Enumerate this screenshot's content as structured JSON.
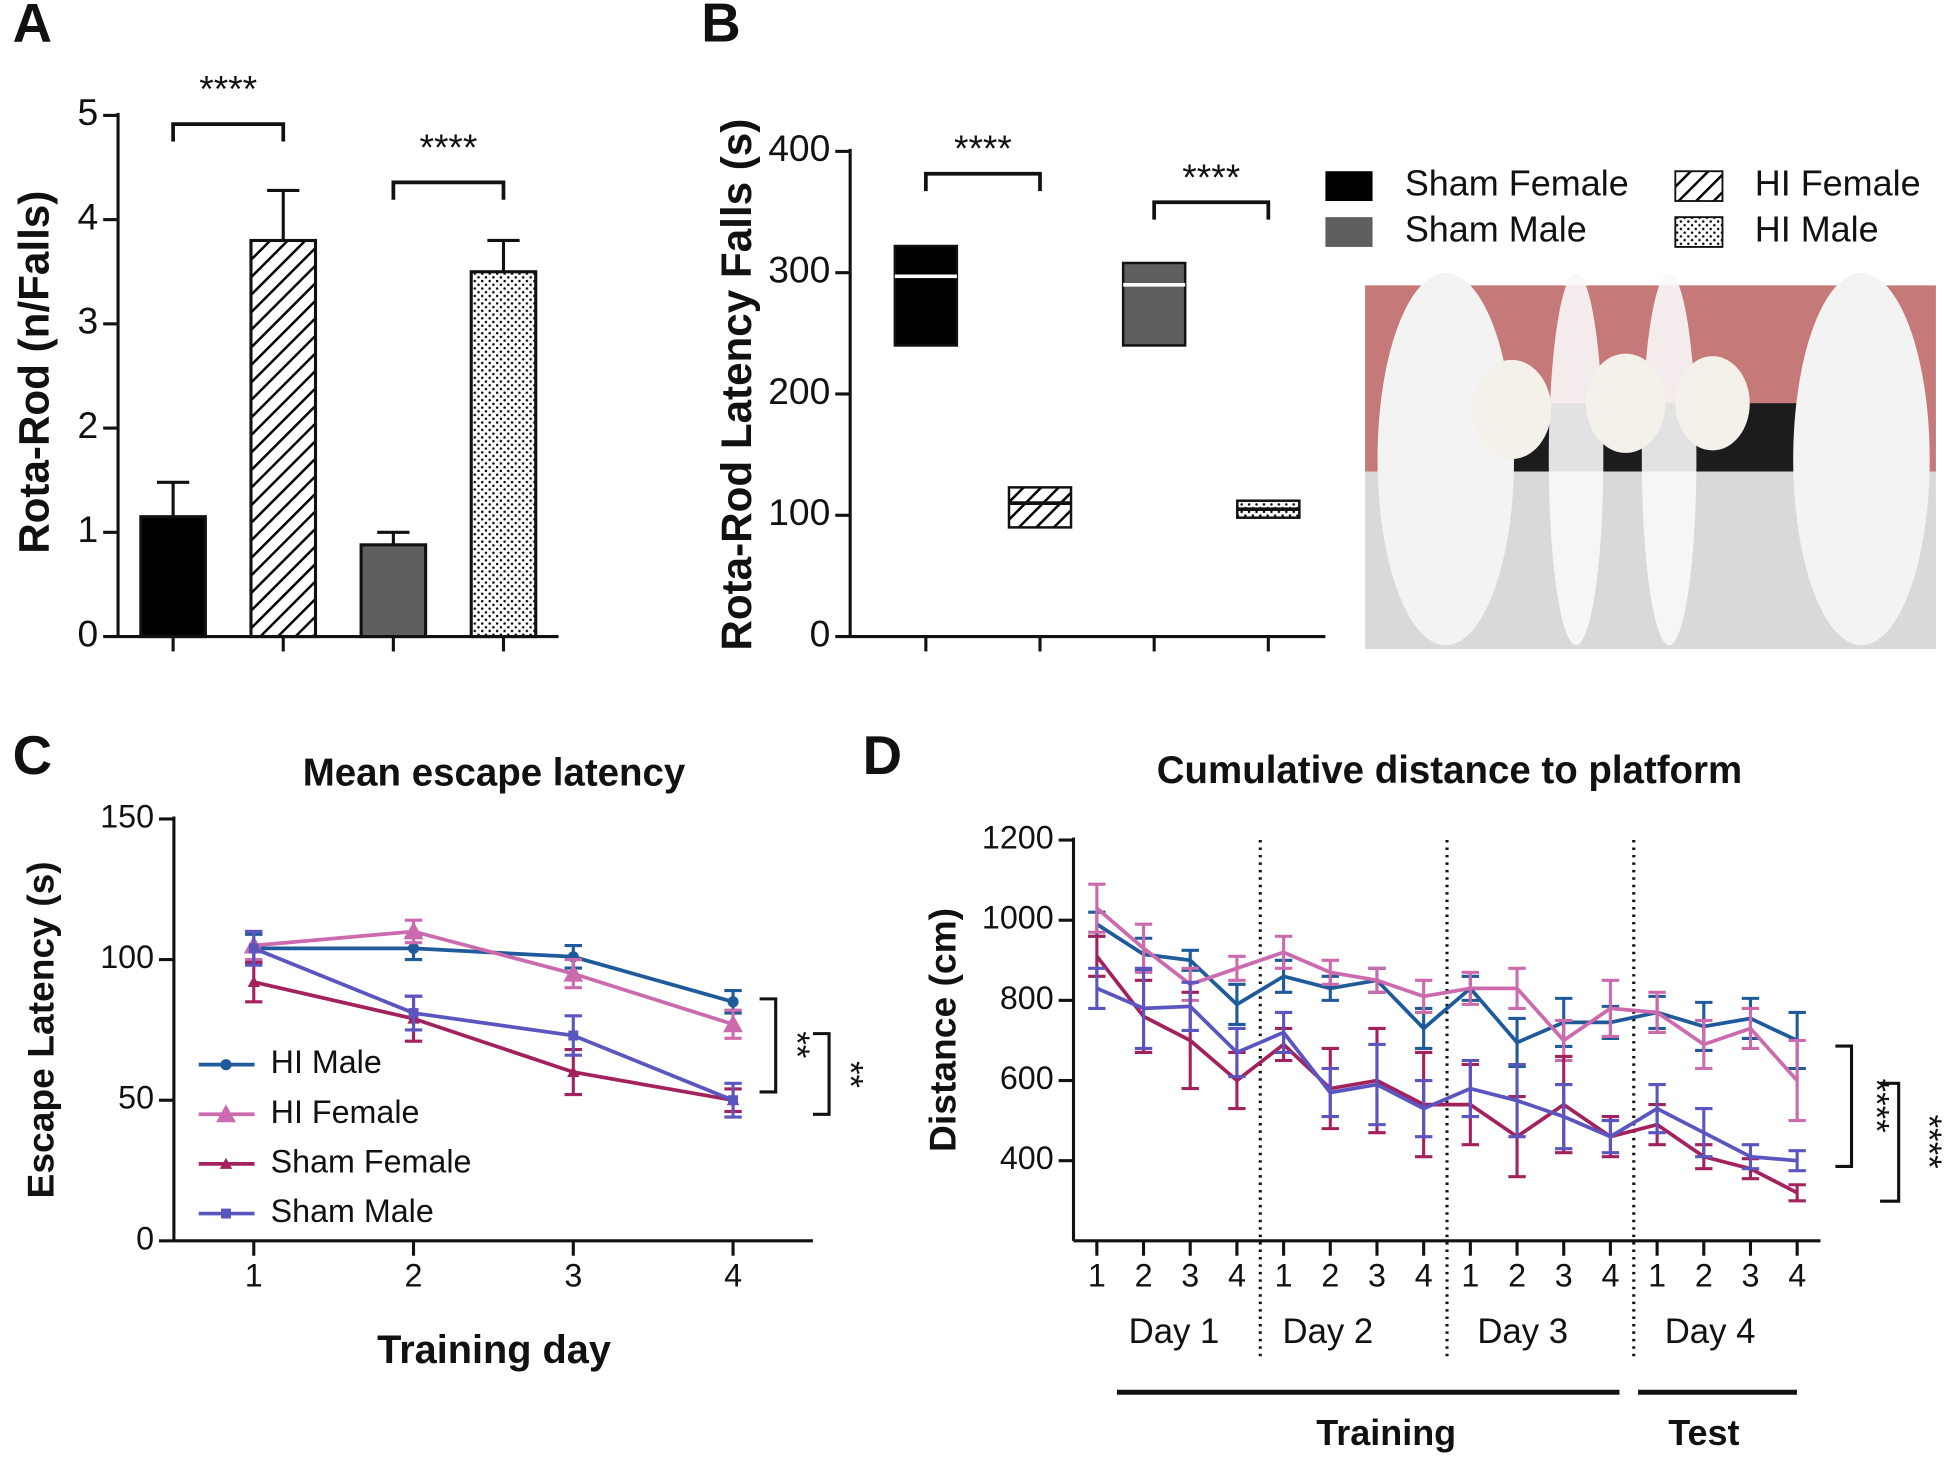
{
  "chart_data": [
    {
      "type": "bar",
      "label": "A",
      "ylabel": "Rota-Rod (n/Falls)",
      "categories": [
        null,
        null,
        null,
        null
      ],
      "series": [
        {
          "values": [
            1.15,
            3.8,
            0.88,
            3.5
          ],
          "errors": [
            0.33,
            0.48,
            0.12,
            0.3
          ],
          "patterns": [
            "solid",
            "hatch",
            "solid",
            "dots"
          ],
          "colors": [
            "#000000",
            "#000000",
            "#5f5f5f",
            "#000000"
          ]
        }
      ],
      "ylim": [
        0,
        5
      ],
      "yticks": [
        0,
        1,
        2,
        3,
        4,
        5
      ],
      "annotations": [
        "****",
        "****"
      ]
    },
    {
      "type": "box",
      "label": "B",
      "ylabel": "Rota-Rod Latency Falls (s)",
      "categories": [
        null,
        null,
        null,
        null
      ],
      "series": [
        {
          "name": "Sham Female",
          "pattern": "solid",
          "color": "#000000",
          "min": 240,
          "median": 297,
          "max": 322
        },
        {
          "name": "HI Female",
          "pattern": "hatch",
          "color": "#000000",
          "min": 90,
          "median": 110,
          "max": 123
        },
        {
          "name": "Sham Male",
          "pattern": "solid",
          "color": "#5f5f5f",
          "min": 240,
          "median": 290,
          "max": 308
        },
        {
          "name": "HI Male",
          "pattern": "dots",
          "color": "#000000",
          "min": 98,
          "median": 105,
          "max": 112
        }
      ],
      "ylim": [
        0,
        400
      ],
      "yticks": [
        0,
        100,
        200,
        300,
        400
      ],
      "annotations": [
        "****",
        "****"
      ]
    },
    {
      "type": "line",
      "label": "C",
      "title": "Mean escape latency",
      "xlabel": "Training day",
      "ylabel": "Escape Latency (s)",
      "x": [
        1,
        2,
        3,
        4
      ],
      "xlim": [
        0.5,
        4.5
      ],
      "xticks": [
        1,
        2,
        3,
        4
      ],
      "series": [
        {
          "name": "HI Male",
          "color": "#1f5a9a",
          "marker": "circle",
          "values": [
            104,
            104,
            101,
            85
          ],
          "errors": [
            5,
            4,
            4,
            4
          ]
        },
        {
          "name": "HI Female",
          "color": "#cc6aae",
          "marker": "triangle",
          "values": [
            105,
            110,
            95,
            77
          ],
          "errors": [
            5,
            4,
            5,
            5
          ]
        },
        {
          "name": "Sham Female",
          "color": "#a3225e",
          "marker": "small-triangle",
          "values": [
            92,
            79,
            60,
            50
          ],
          "errors": [
            7,
            8,
            8,
            4
          ]
        },
        {
          "name": "Sham Male",
          "color": "#5b55c0",
          "marker": "square",
          "values": [
            104,
            81,
            73,
            50
          ],
          "errors": [
            6,
            6,
            7,
            6
          ]
        }
      ],
      "ylim": [
        0,
        150
      ],
      "yticks": [
        0,
        50,
        100,
        150
      ],
      "annotations": [
        "**",
        "**"
      ]
    },
    {
      "type": "line",
      "label": "D",
      "title": "Cumulative distance to platform",
      "ylabel": "Distance (cm)",
      "categories": [
        "1",
        "2",
        "3",
        "4",
        "1",
        "2",
        "3",
        "4",
        "1",
        "2",
        "3",
        "4",
        "1",
        "2",
        "3",
        "4"
      ],
      "groups": [
        "Day 1",
        "Day 2",
        "Day 3",
        "Day 4"
      ],
      "phases": [
        "Training",
        "Test"
      ],
      "series": [
        {
          "name": "HI Male",
          "color": "#1f5a9a",
          "values": [
            990,
            915,
            900,
            790,
            860,
            830,
            850,
            730,
            830,
            695,
            745,
            745,
            770,
            735,
            755,
            700
          ],
          "errors": [
            30,
            40,
            25,
            50,
            40,
            30,
            30,
            50,
            30,
            60,
            60,
            40,
            40,
            60,
            50,
            70
          ]
        },
        {
          "name": "HI Female",
          "color": "#cc6aae",
          "values": [
            1030,
            930,
            840,
            880,
            920,
            870,
            850,
            810,
            830,
            830,
            700,
            780,
            770,
            690,
            730,
            600
          ],
          "errors": [
            60,
            60,
            40,
            30,
            40,
            30,
            30,
            40,
            40,
            50,
            50,
            70,
            50,
            60,
            50,
            100
          ]
        },
        {
          "name": "Sham Female",
          "color": "#a3225e",
          "values": [
            910,
            760,
            700,
            600,
            690,
            580,
            600,
            540,
            540,
            460,
            540,
            460,
            490,
            410,
            380,
            320
          ],
          "errors": [
            50,
            90,
            120,
            70,
            40,
            100,
            130,
            130,
            100,
            100,
            120,
            50,
            50,
            30,
            25,
            20
          ]
        },
        {
          "name": "Sham Male",
          "color": "#5b55c0",
          "values": [
            830,
            780,
            785,
            670,
            720,
            570,
            590,
            530,
            580,
            550,
            510,
            460,
            530,
            470,
            410,
            400
          ],
          "errors": [
            50,
            100,
            60,
            60,
            50,
            60,
            100,
            70,
            70,
            90,
            80,
            40,
            60,
            60,
            30,
            25
          ]
        }
      ],
      "ylim": [
        200,
        1200
      ],
      "yticks": [
        400,
        600,
        800,
        1000,
        1200
      ],
      "annotations": [
        "****",
        "****"
      ]
    }
  ]
}
